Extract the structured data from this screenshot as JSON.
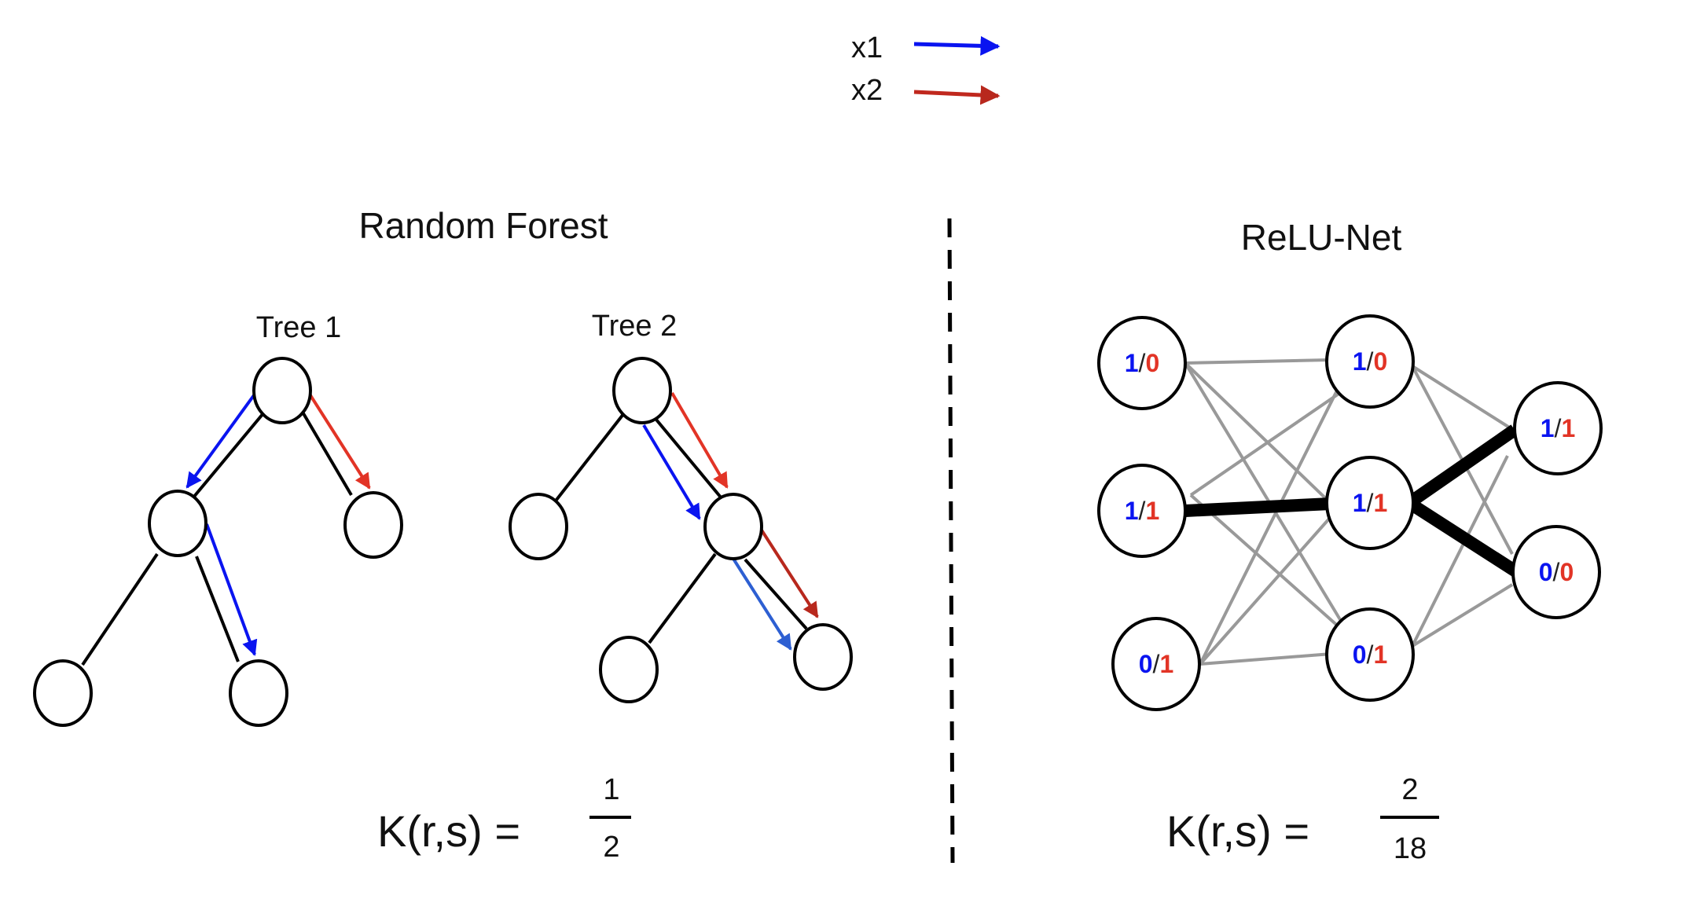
{
  "legend": {
    "items": [
      {
        "label": "x1",
        "color": "#0a14f0"
      },
      {
        "label": "x2",
        "color": "#c0281e"
      }
    ]
  },
  "random_forest": {
    "title": "Random Forest",
    "trees": [
      {
        "label": "Tree 1"
      },
      {
        "label": "Tree 2"
      }
    ],
    "kernel": {
      "lhs": "K(r,s) =",
      "numerator": "1",
      "denominator": "2"
    }
  },
  "relu_net": {
    "title": "ReLU-Net",
    "layers": [
      [
        {
          "a": "1",
          "b": "0"
        },
        {
          "a": "1",
          "b": "1"
        },
        {
          "a": "0",
          "b": "1"
        }
      ],
      [
        {
          "a": "1",
          "b": "0"
        },
        {
          "a": "1",
          "b": "1"
        },
        {
          "a": "0",
          "b": "1"
        }
      ],
      [
        {
          "a": "1",
          "b": "1"
        },
        {
          "a": "0",
          "b": "0"
        }
      ]
    ],
    "separator": "/",
    "kernel": {
      "lhs": "K(r,s) =",
      "numerator": "2",
      "denominator": "18"
    }
  },
  "colors": {
    "x1": "#0a14f0",
    "x1_alt": "#2d5fd2",
    "x2": "#e23426",
    "x2_alt": "#b8281d",
    "edge": "#999999",
    "ink": "#000000"
  }
}
